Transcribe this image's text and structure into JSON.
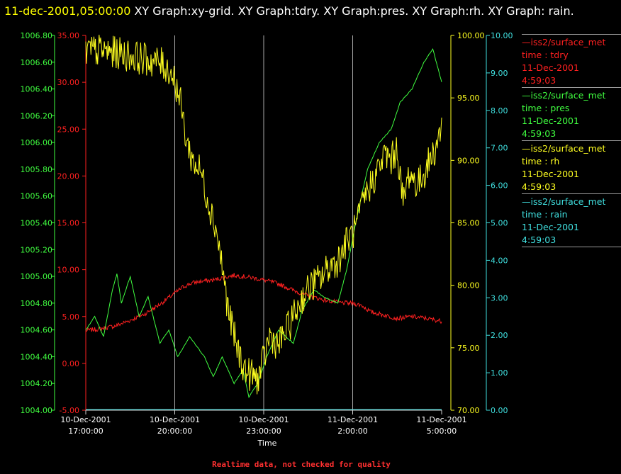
{
  "header": {
    "timestamp": "11-dec-2001,05:00:00",
    "description": "XY Graph:xy-grid.  XY Graph:tdry.  XY Graph:pres.  XY Graph:rh.  XY Graph: rain."
  },
  "footer": {
    "note": "Realtime data, not checked for quality"
  },
  "legend": [
    {
      "source": "—iss2/surface_met",
      "field": "time : tdry",
      "date": "11-Dec-2001",
      "time": "4:59:03",
      "color": "#ff2020"
    },
    {
      "source": "—iss2/surface_met",
      "field": "time : pres",
      "date": "11-Dec-2001",
      "time": "4:59:03",
      "color": "#40ff40"
    },
    {
      "source": "—iss2/surface_met",
      "field": "time : rh",
      "date": "11-Dec-2001",
      "time": "4:59:03",
      "color": "#ffff20"
    },
    {
      "source": "—iss2/surface_met",
      "field": "time : rain",
      "date": "11-Dec-2001",
      "time": "4:59:03",
      "color": "#40e0e0"
    }
  ],
  "chart_data": {
    "type": "line",
    "xlabel": "Time",
    "x_ticks": [
      {
        "date": "10-Dec-2001",
        "time": "17:00:00",
        "hours": 0
      },
      {
        "date": "10-Dec-2001",
        "time": "20:00:00",
        "hours": 3
      },
      {
        "date": "10-Dec-2001",
        "time": "23:00:00",
        "hours": 6
      },
      {
        "date": "11-Dec-2001",
        "time": "2:00:00",
        "hours": 9
      },
      {
        "date": "11-Dec-2001",
        "time": "5:00:00",
        "hours": 12
      }
    ],
    "grid": {
      "vertical": true,
      "horizontal": false
    },
    "axes": {
      "pres": {
        "min": 1004.0,
        "max": 1006.8,
        "ticks": [
          "1004.00",
          "1004.20",
          "1004.40",
          "1004.60",
          "1004.80",
          "1005.00",
          "1005.20",
          "1005.40",
          "1005.60",
          "1005.80",
          "1006.00",
          "1006.20",
          "1006.40",
          "1006.60",
          "1006.80"
        ],
        "color": "#40ff40"
      },
      "tdry": {
        "min": -5,
        "max": 35,
        "ticks": [
          "-5.00",
          "0.00",
          "5.00",
          "10.00",
          "15.00",
          "20.00",
          "25.00",
          "30.00",
          "35.00"
        ],
        "color": "#ff2020"
      },
      "rh": {
        "min": 70,
        "max": 100,
        "ticks": [
          "70.00",
          "75.00",
          "80.00",
          "85.00",
          "90.00",
          "95.00",
          "100.00"
        ],
        "color": "#ffff20"
      },
      "rain": {
        "min": 0,
        "max": 10,
        "ticks": [
          "0.00",
          "1.00",
          "2.00",
          "3.00",
          "4.00",
          "5.00",
          "6.00",
          "7.00",
          "8.00",
          "9.00",
          "10.00"
        ],
        "color": "#40e0e0"
      }
    },
    "series": [
      {
        "name": "tdry",
        "axis": "tdry",
        "color": "#ff2020",
        "points": [
          [
            0,
            3.5
          ],
          [
            0.5,
            3.7
          ],
          [
            1,
            4.0
          ],
          [
            1.5,
            4.6
          ],
          [
            2,
            5.3
          ],
          [
            2.5,
            6.3
          ],
          [
            3,
            7.5
          ],
          [
            3.3,
            8.2
          ],
          [
            3.6,
            8.6
          ],
          [
            4,
            8.8
          ],
          [
            4.3,
            8.9
          ],
          [
            4.7,
            9.2
          ],
          [
            5,
            9.4
          ],
          [
            5.5,
            9.2
          ],
          [
            6,
            8.9
          ],
          [
            6.5,
            8.5
          ],
          [
            7,
            7.8
          ],
          [
            7.5,
            7.2
          ],
          [
            8,
            6.8
          ],
          [
            8.5,
            6.5
          ],
          [
            9,
            6.4
          ],
          [
            9.3,
            6.2
          ],
          [
            9.6,
            5.5
          ],
          [
            10,
            5.2
          ],
          [
            10.5,
            4.8
          ],
          [
            11,
            5.0
          ],
          [
            11.5,
            4.8
          ],
          [
            12,
            4.5
          ]
        ]
      },
      {
        "name": "pres",
        "axis": "pres",
        "color": "#40ff40",
        "points": [
          [
            0,
            1004.6
          ],
          [
            0.3,
            1004.7
          ],
          [
            0.6,
            1004.55
          ],
          [
            0.9,
            1004.9
          ],
          [
            1.05,
            1005.02
          ],
          [
            1.2,
            1004.8
          ],
          [
            1.5,
            1005.0
          ],
          [
            1.8,
            1004.7
          ],
          [
            2.1,
            1004.85
          ],
          [
            2.5,
            1004.5
          ],
          [
            2.8,
            1004.6
          ],
          [
            3.1,
            1004.4
          ],
          [
            3.5,
            1004.55
          ],
          [
            4,
            1004.4
          ],
          [
            4.3,
            1004.25
          ],
          [
            4.6,
            1004.4
          ],
          [
            5,
            1004.2
          ],
          [
            5.3,
            1004.3
          ],
          [
            5.5,
            1004.1
          ],
          [
            5.8,
            1004.2
          ],
          [
            6.1,
            1004.4
          ],
          [
            6.5,
            1004.6
          ],
          [
            7,
            1004.5
          ],
          [
            7.3,
            1004.75
          ],
          [
            7.7,
            1004.9
          ],
          [
            8,
            1004.85
          ],
          [
            8.5,
            1004.8
          ],
          [
            8.8,
            1005.05
          ],
          [
            9.1,
            1005.4
          ],
          [
            9.5,
            1005.8
          ],
          [
            9.9,
            1006.0
          ],
          [
            10.3,
            1006.1
          ],
          [
            10.6,
            1006.3
          ],
          [
            11,
            1006.4
          ],
          [
            11.4,
            1006.6
          ],
          [
            11.7,
            1006.7
          ],
          [
            12,
            1006.45
          ]
        ]
      },
      {
        "name": "rh",
        "axis": "rh",
        "color": "#ffff20",
        "points": [
          [
            0,
            98.7
          ],
          [
            0.5,
            98.8
          ],
          [
            1,
            98.6
          ],
          [
            1.5,
            98.4
          ],
          [
            2,
            98.1
          ],
          [
            2.5,
            97.8
          ],
          [
            2.8,
            97.3
          ],
          [
            3,
            96.5
          ],
          [
            3.2,
            94.5
          ],
          [
            3.4,
            91.5
          ],
          [
            3.6,
            90.0
          ],
          [
            3.9,
            89.0
          ],
          [
            4.1,
            87.0
          ],
          [
            4.4,
            84.5
          ],
          [
            4.6,
            81.5
          ],
          [
            4.8,
            78.0
          ],
          [
            5.1,
            75.0
          ],
          [
            5.4,
            73.0
          ],
          [
            5.6,
            72.8
          ],
          [
            5.8,
            72.5
          ],
          [
            6,
            74.0
          ],
          [
            6.2,
            76.0
          ],
          [
            6.5,
            75.2
          ],
          [
            6.8,
            76.5
          ],
          [
            7,
            77.5
          ],
          [
            7.3,
            79.0
          ],
          [
            7.6,
            80.0
          ],
          [
            7.9,
            80.5
          ],
          [
            8.2,
            81.5
          ],
          [
            8.5,
            82.0
          ],
          [
            8.8,
            83.5
          ],
          [
            9.1,
            84.5
          ],
          [
            9.4,
            87.0
          ],
          [
            9.8,
            89.0
          ],
          [
            10.1,
            90.5
          ],
          [
            10.3,
            90.0
          ],
          [
            10.5,
            91.0
          ],
          [
            10.7,
            86.5
          ],
          [
            10.9,
            89.0
          ],
          [
            11.2,
            88.0
          ],
          [
            11.5,
            89.5
          ],
          [
            11.8,
            91.0
          ],
          [
            12,
            92.9
          ]
        ]
      },
      {
        "name": "rain",
        "axis": "rain",
        "color": "#40e0e0",
        "points": [
          [
            0,
            0.02
          ],
          [
            12,
            0.02
          ]
        ]
      }
    ]
  }
}
